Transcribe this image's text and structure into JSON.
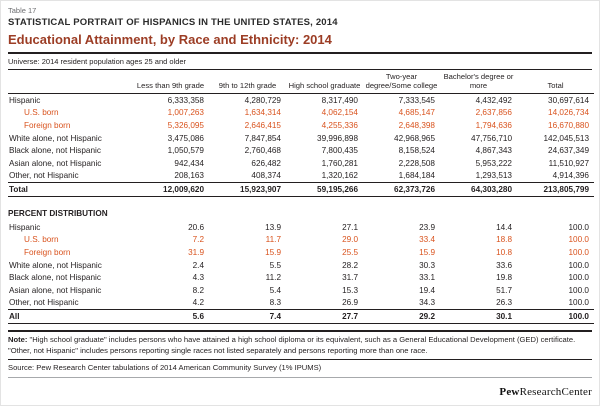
{
  "page": {
    "table_number": "Table 17",
    "report_title": "STATISTICAL PORTRAIT OF HISPANICS IN THE UNITED STATES, 2014",
    "table_title": "Educational Attainment, by Race and Ethnicity: 2014",
    "universe": "Universe: 2014 resident population ages 25 and older",
    "note_label": "Note:",
    "note_text": "\"High school graduate\" includes persons who have attained a high school diploma or its equivalent, such as a General Educational Development (GED) certificate. \"Other, not Hispanic\" includes persons reporting single races not listed separately and persons reporting more than one race.",
    "source": "Source: Pew Research Center tabulations of 2014 American Community Survey (1% IPUMS)",
    "logo_pew": "Pew",
    "logo_rest": "ResearchCenter"
  },
  "colors": {
    "title_accent": "#9c3d25",
    "row_accent": "#d9531e"
  },
  "table": {
    "columns": [
      "",
      "Less than 9th grade",
      "9th to 12th grade",
      "High school graduate",
      "Two-year degree/Some college",
      "Bachelor's degree or more",
      "Total"
    ],
    "percent_header": "PERCENT DISTRIBUTION",
    "counts_rows": [
      {
        "label": "Hispanic",
        "style": "",
        "values": [
          "6,333,358",
          "4,280,729",
          "8,317,490",
          "7,333,545",
          "4,432,492",
          "30,697,614"
        ]
      },
      {
        "label": "U.S. born",
        "style": "orange",
        "values": [
          "1,007,263",
          "1,634,314",
          "4,062,154",
          "4,685,147",
          "2,637,856",
          "14,026,734"
        ]
      },
      {
        "label": "Foreign born",
        "style": "orange",
        "values": [
          "5,326,095",
          "2,646,415",
          "4,255,336",
          "2,648,398",
          "1,794,636",
          "16,670,880"
        ]
      },
      {
        "label": "White alone, not Hispanic",
        "style": "",
        "values": [
          "3,475,086",
          "7,847,854",
          "39,996,898",
          "42,968,965",
          "47,756,710",
          "142,045,513"
        ]
      },
      {
        "label": "Black alone, not Hispanic",
        "style": "",
        "values": [
          "1,050,579",
          "2,760,468",
          "7,800,435",
          "8,158,524",
          "4,867,343",
          "24,637,349"
        ]
      },
      {
        "label": "Asian alone, not Hispanic",
        "style": "",
        "values": [
          "942,434",
          "626,482",
          "1,760,281",
          "2,228,508",
          "5,953,222",
          "11,510,927"
        ]
      },
      {
        "label": "Other, not Hispanic",
        "style": "",
        "values": [
          "208,163",
          "408,374",
          "1,320,162",
          "1,684,184",
          "1,293,513",
          "4,914,396"
        ]
      },
      {
        "label": "Total",
        "style": "total",
        "values": [
          "12,009,620",
          "15,923,907",
          "59,195,266",
          "62,373,726",
          "64,303,280",
          "213,805,799"
        ]
      }
    ],
    "percent_rows": [
      {
        "label": "Hispanic",
        "style": "",
        "values": [
          "20.6",
          "13.9",
          "27.1",
          "23.9",
          "14.4",
          "100.0"
        ]
      },
      {
        "label": "U.S. born",
        "style": "orange",
        "values": [
          "7.2",
          "11.7",
          "29.0",
          "33.4",
          "18.8",
          "100.0"
        ]
      },
      {
        "label": "Foreign born",
        "style": "orange",
        "values": [
          "31.9",
          "15.9",
          "25.5",
          "15.9",
          "10.8",
          "100.0"
        ]
      },
      {
        "label": "White alone, not Hispanic",
        "style": "",
        "values": [
          "2.4",
          "5.5",
          "28.2",
          "30.3",
          "33.6",
          "100.0"
        ]
      },
      {
        "label": "Black alone, not Hispanic",
        "style": "",
        "values": [
          "4.3",
          "11.2",
          "31.7",
          "33.1",
          "19.8",
          "100.0"
        ]
      },
      {
        "label": "Asian alone, not Hispanic",
        "style": "",
        "values": [
          "8.2",
          "5.4",
          "15.3",
          "19.4",
          "51.7",
          "100.0"
        ]
      },
      {
        "label": "Other, not Hispanic",
        "style": "",
        "values": [
          "4.2",
          "8.3",
          "26.9",
          "34.3",
          "26.3",
          "100.0"
        ]
      },
      {
        "label": "All",
        "style": "total",
        "values": [
          "5.6",
          "7.4",
          "27.7",
          "29.2",
          "30.1",
          "100.0"
        ]
      }
    ]
  }
}
